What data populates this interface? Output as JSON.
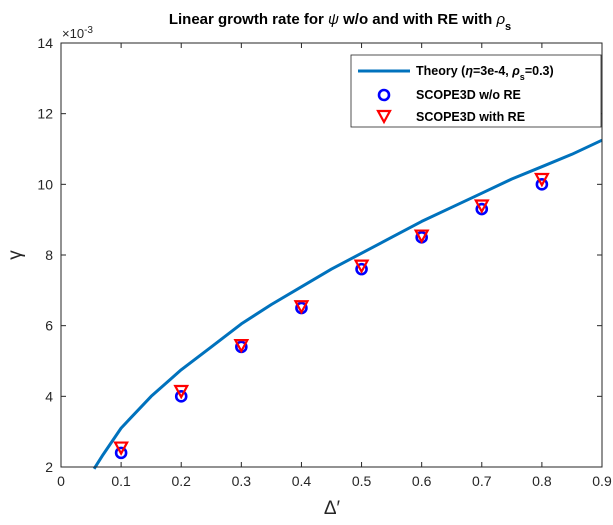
{
  "chart_data": {
    "type": "line",
    "title": {
      "prefix": "Linear growth rate for ",
      "symbol1": "ψ",
      "middle": " w/o and with RE with ",
      "symbol2": "ρ",
      "subscript": "s"
    },
    "xlabel": "Δ′",
    "ylabel": "γ",
    "y_exponent_label": "×10",
    "y_exponent": "-3",
    "xlim": [
      0,
      0.9
    ],
    "ylim": [
      2,
      14
    ],
    "xticks": [
      "0",
      "0.1",
      "0.2",
      "0.3",
      "0.4",
      "0.5",
      "0.6",
      "0.7",
      "0.8",
      "0.9"
    ],
    "yticks": [
      "2",
      "4",
      "6",
      "8",
      "10",
      "12",
      "14"
    ],
    "grid": false,
    "legend_position": "top-right",
    "series": [
      {
        "name": "Theory (η=3e-4, ρs=0.3)",
        "legend": {
          "pre": "Theory (",
          "eta": "η",
          "mid": "=3e-4, ",
          "rho": "ρ",
          "sub": "s",
          "post": "=0.3)"
        },
        "kind": "line",
        "color": "#0072BD",
        "x": [
          0.055,
          0.07,
          0.1,
          0.15,
          0.2,
          0.25,
          0.3,
          0.35,
          0.4,
          0.45,
          0.5,
          0.55,
          0.6,
          0.65,
          0.7,
          0.75,
          0.8,
          0.85,
          0.9
        ],
        "y": [
          1.95,
          2.35,
          3.1,
          4.0,
          4.75,
          5.4,
          6.05,
          6.6,
          7.1,
          7.6,
          8.05,
          8.5,
          8.95,
          9.35,
          9.75,
          10.15,
          10.5,
          10.85,
          11.25
        ]
      },
      {
        "name": "SCOPE3D w/o RE",
        "kind": "marker-circle",
        "color": "#0000FF",
        "x": [
          0.1,
          0.2,
          0.3,
          0.4,
          0.5,
          0.6,
          0.7,
          0.8
        ],
        "y": [
          2.4,
          4.0,
          5.4,
          6.5,
          7.6,
          8.5,
          9.3,
          10.0
        ]
      },
      {
        "name": "SCOPE3D with RE",
        "kind": "marker-triangle-down",
        "color": "#FF0000",
        "x": [
          0.1,
          0.2,
          0.3,
          0.4,
          0.5,
          0.6,
          0.7,
          0.8
        ],
        "y": [
          2.55,
          4.15,
          5.45,
          6.55,
          7.7,
          8.55,
          9.4,
          10.15
        ]
      }
    ]
  }
}
